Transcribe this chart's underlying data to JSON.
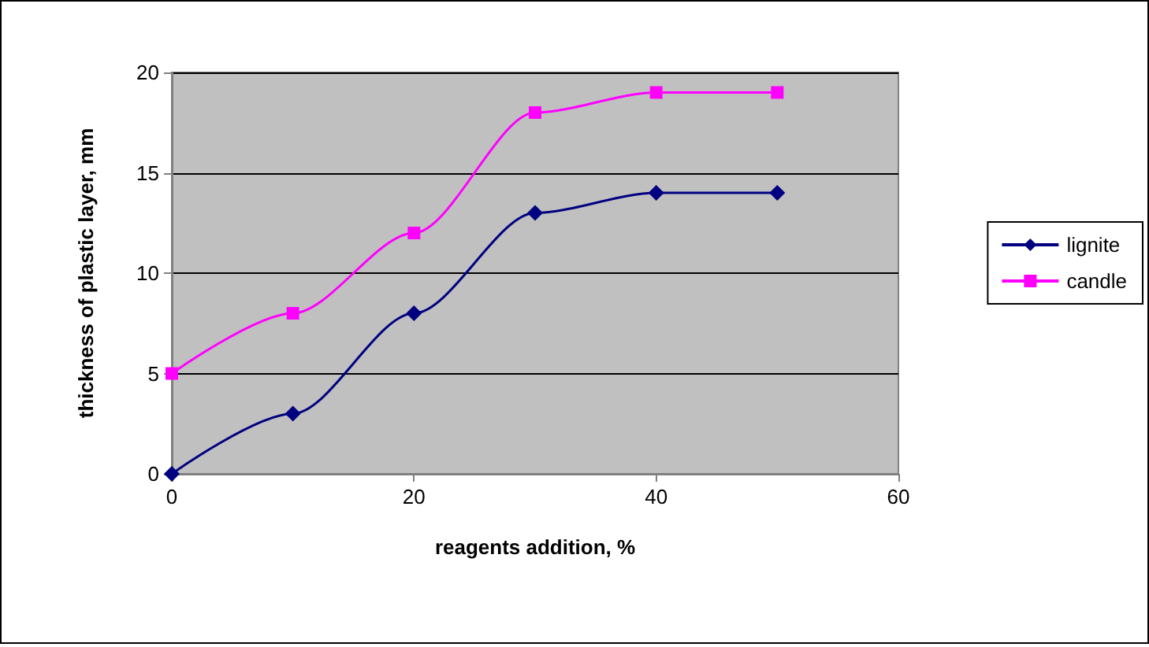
{
  "chart_data": {
    "type": "line",
    "xlabel": "reagents addition, %",
    "ylabel": "thickness of plastic layer, mm",
    "x": [
      0,
      10,
      20,
      30,
      40,
      50
    ],
    "series": [
      {
        "name": "lignite",
        "color": "#000080",
        "values": [
          0,
          3,
          8,
          13,
          14,
          14
        ],
        "marker": "diamond"
      },
      {
        "name": "candle",
        "color": "#ff00ff",
        "values": [
          5,
          8,
          12,
          18,
          19,
          19
        ],
        "marker": "square"
      }
    ],
    "xlim": [
      0,
      60
    ],
    "xticks": [
      0,
      20,
      40,
      60
    ],
    "ylim": [
      0,
      20
    ],
    "yticks": [
      0,
      5,
      10,
      15,
      20
    ],
    "grid": "y",
    "legend": "right",
    "line_style": "solid"
  }
}
